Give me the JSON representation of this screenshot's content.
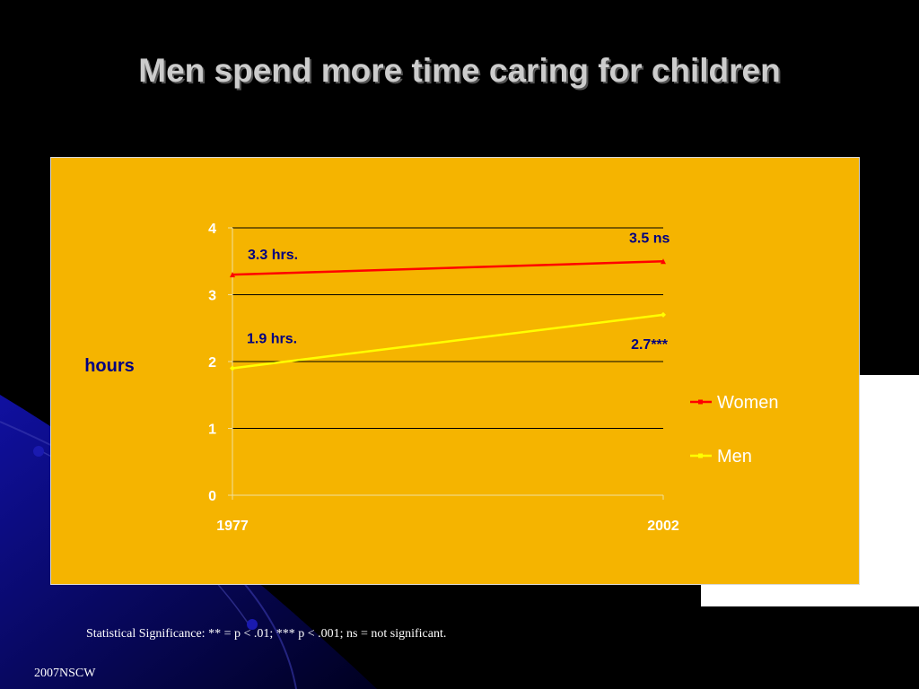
{
  "slide": {
    "title": "Men spend more time caring for children",
    "footnote": "Statistical Significance: ** = p < .01; *** p < .001; ns = not significant.",
    "footer": "2007NSCW"
  },
  "colors": {
    "chart_background": "#f5b400",
    "women": "#ff0000",
    "men": "#ffff00",
    "annotation": "#000080"
  },
  "chart_data": {
    "type": "line",
    "x": [
      "1977",
      "2002"
    ],
    "series": [
      {
        "name": "Women",
        "values": [
          3.3,
          3.5
        ],
        "color": "#ff0000"
      },
      {
        "name": "Men",
        "values": [
          1.9,
          2.7
        ],
        "color": "#ffff00"
      }
    ],
    "ylabel": "hours",
    "ylim": [
      0,
      4
    ],
    "yticks": [
      0,
      1,
      2,
      3,
      4
    ],
    "grid": true,
    "legend": "right",
    "annotations": [
      {
        "text": "3.3 hrs.",
        "series": "Women",
        "x": "1977"
      },
      {
        "text": "3.5 ns",
        "series": "Women",
        "x": "2002"
      },
      {
        "text": "1.9 hrs.",
        "series": "Men",
        "x": "1977"
      },
      {
        "text": "2.7***",
        "series": "Men",
        "x": "2002"
      }
    ]
  }
}
